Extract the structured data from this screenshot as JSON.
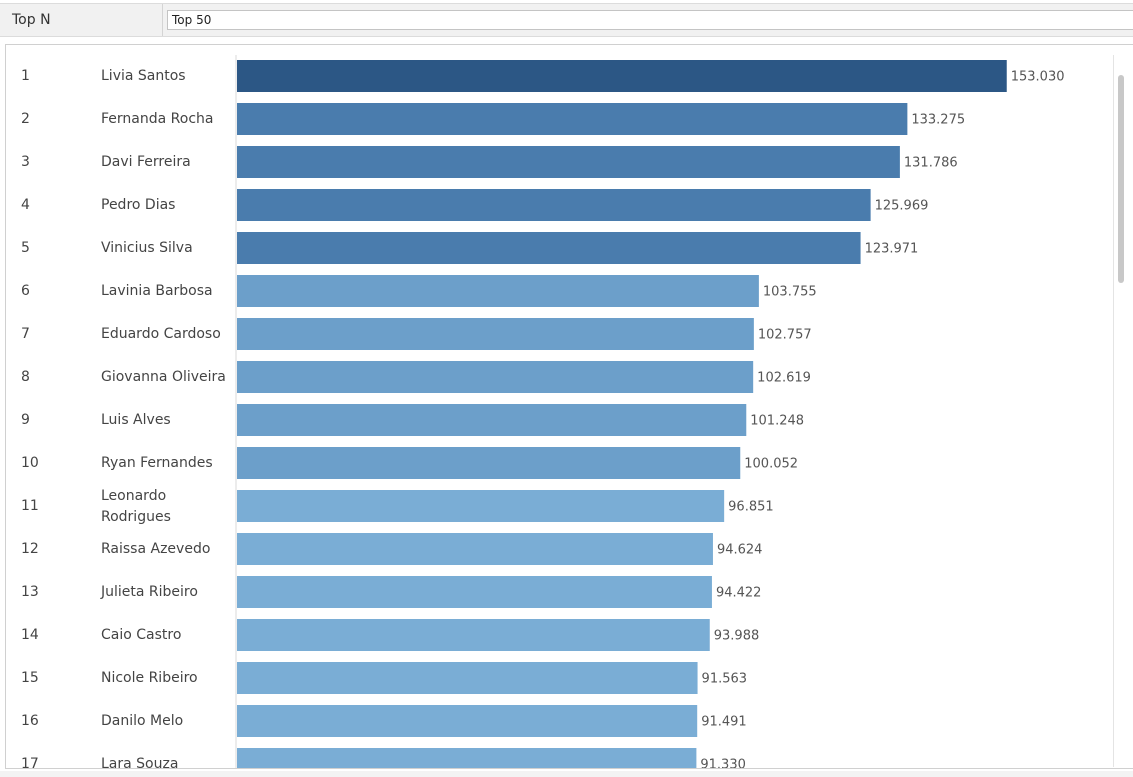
{
  "parameter": {
    "label": "Top N",
    "value": "Top 50"
  },
  "chart_data": {
    "type": "bar",
    "orientation": "horizontal",
    "xlim": [
      0,
      165
    ],
    "grid": false,
    "colors": {
      "top1": "#2c5785",
      "top2to5": "#4a7cad",
      "mid": "#6c9fca",
      "rest": "#7aadd5"
    },
    "rows": [
      {
        "rank": "1",
        "name": "Livia Santos",
        "value": 153.03,
        "label": "153.030"
      },
      {
        "rank": "2",
        "name": "Fernanda Rocha",
        "value": 133.275,
        "label": "133.275"
      },
      {
        "rank": "3",
        "name": "Davi Ferreira",
        "value": 131.786,
        "label": "131.786"
      },
      {
        "rank": "4",
        "name": "Pedro Dias",
        "value": 125.969,
        "label": "125.969"
      },
      {
        "rank": "5",
        "name": "Vinicius Silva",
        "value": 123.971,
        "label": "123.971"
      },
      {
        "rank": "6",
        "name": "Lavinia Barbosa",
        "value": 103.755,
        "label": "103.755"
      },
      {
        "rank": "7",
        "name": "Eduardo Cardoso",
        "value": 102.757,
        "label": "102.757"
      },
      {
        "rank": "8",
        "name": "Giovanna Oliveira",
        "value": 102.619,
        "label": "102.619"
      },
      {
        "rank": "9",
        "name": "Luis Alves",
        "value": 101.248,
        "label": "101.248"
      },
      {
        "rank": "10",
        "name": "Ryan Fernandes",
        "value": 100.052,
        "label": "100.052"
      },
      {
        "rank": "11",
        "name": "Leonardo Rodrigues",
        "value": 96.851,
        "label": "96.851"
      },
      {
        "rank": "12",
        "name": "Raissa Azevedo",
        "value": 94.624,
        "label": "94.624"
      },
      {
        "rank": "13",
        "name": "Julieta Ribeiro",
        "value": 94.422,
        "label": "94.422"
      },
      {
        "rank": "14",
        "name": "Caio Castro",
        "value": 93.988,
        "label": "93.988"
      },
      {
        "rank": "15",
        "name": "Nicole Ribeiro",
        "value": 91.563,
        "label": "91.563"
      },
      {
        "rank": "16",
        "name": "Danilo Melo",
        "value": 91.491,
        "label": "91.491"
      },
      {
        "rank": "17",
        "name": "Lara Souza",
        "value": 91.33,
        "label": "91.330"
      }
    ]
  }
}
